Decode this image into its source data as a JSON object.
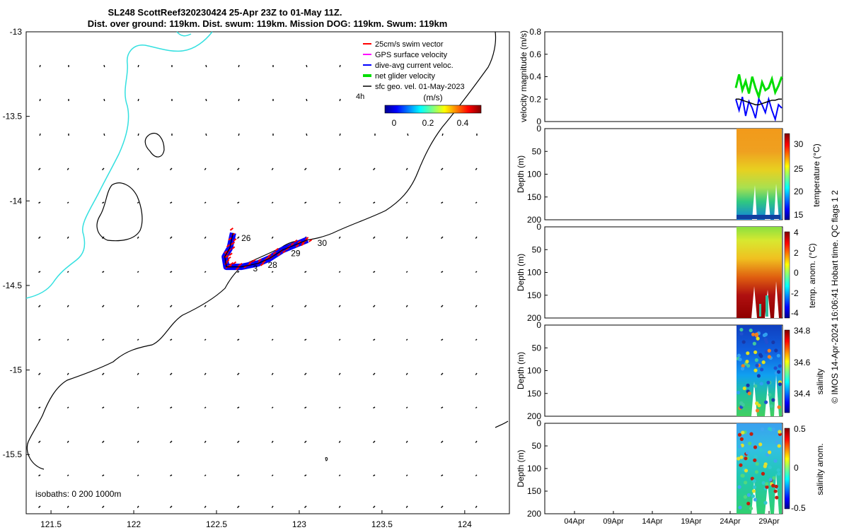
{
  "title": {
    "line1": "SL248 ScottReef320230424 25-Apr 23Z to 01-May 11Z.",
    "line2": "Dist. over ground: 119km. Dist. swum: 119km. Mission DOG: 119km. Swum: 119km"
  },
  "colors": {
    "swim_vector": "#ff0000",
    "gps_surface": "#ff00ff",
    "dive_avg": "#0000ff",
    "net_glider": "#00dd00",
    "sfc_geo": "#000000",
    "coast_cyan": "#33e0e0"
  },
  "chart_data": [
    {
      "type": "map",
      "name": "track map",
      "xlim": [
        121.35,
        124.27
      ],
      "ylim": [
        -15.85,
        -13
      ],
      "xticks": [
        "121.5",
        "122",
        "122.5",
        "123",
        "123.5",
        "124"
      ],
      "xtick_values": [
        121.5,
        122,
        122.5,
        123,
        123.5,
        124
      ],
      "yticks": [
        "-13",
        "-13.5",
        "-14",
        "-14.5",
        "-15",
        "-15.5"
      ],
      "ytick_values": [
        -13,
        -13.5,
        -14,
        -14.5,
        -15,
        -15.5
      ],
      "legend": [
        {
          "label": "25cm/s swim vector",
          "color": "#ff0000"
        },
        {
          "label": "GPS surface velocity",
          "color": "#ff00ff"
        },
        {
          "label": "dive-avg current veloc.",
          "color": "#0000ff"
        },
        {
          "label": "net glider velocity",
          "color": "#00dd00"
        },
        {
          "label": "sfc geo. vel. 01-May-2023",
          "color": "#000000"
        }
      ],
      "legend_extra": "4h",
      "colorbar": {
        "label": "(m/s)",
        "ticks": [
          "0",
          "0.2",
          "0.4"
        ],
        "range": [
          0,
          0.5
        ]
      },
      "day_labels": [
        {
          "text": "26",
          "lon": 122.65,
          "lat": -14.22
        },
        {
          "text": "28",
          "lon": 122.81,
          "lat": -14.38
        },
        {
          "text": "3",
          "lon": 122.72,
          "lat": -14.4
        },
        {
          "text": "29",
          "lon": 122.95,
          "lat": -14.31
        },
        {
          "text": "30",
          "lon": 123.11,
          "lat": -14.25
        }
      ],
      "track": [
        {
          "lon": 122.6,
          "lat": -14.19
        },
        {
          "lon": 122.58,
          "lat": -14.28
        },
        {
          "lon": 122.55,
          "lat": -14.33
        },
        {
          "lon": 122.56,
          "lat": -14.39
        },
        {
          "lon": 122.65,
          "lat": -14.39
        },
        {
          "lon": 122.75,
          "lat": -14.37
        },
        {
          "lon": 122.82,
          "lat": -14.34
        },
        {
          "lon": 122.9,
          "lat": -14.29
        },
        {
          "lon": 123.0,
          "lat": -14.25
        },
        {
          "lon": 123.05,
          "lat": -14.23
        }
      ],
      "isobath_note": "isobaths: 0   200  1000m"
    },
    {
      "type": "line",
      "name": "velocity magnitude",
      "ylabel": "velocity magnitude (m/s)",
      "ylim": [
        0,
        0.8
      ],
      "yticks": [
        "0",
        "0.2",
        "0.4",
        "0.6",
        "0.8"
      ],
      "ytick_values": [
        0,
        0.2,
        0.4,
        0.6,
        0.8
      ],
      "x_start_day": 26,
      "x_end_day": 31.5,
      "series": [
        {
          "name": "net glider velocity",
          "color": "#00dd00",
          "values": [
            0.3,
            0.42,
            0.28,
            0.36,
            0.25,
            0.4,
            0.3,
            0.22,
            0.35,
            0.28,
            0.3,
            0.38,
            0.26,
            0.32,
            0.4
          ]
        },
        {
          "name": "dive-avg current veloc.",
          "color": "#0000ff",
          "values": [
            0.2,
            0.1,
            0.22,
            0.05,
            0.18,
            0.12,
            0.03,
            0.2,
            0.15,
            0.08,
            0.2,
            0.1,
            0.02,
            0.15,
            0.12
          ]
        },
        {
          "name": "sfc geo. vel.",
          "color": "#000000",
          "values": [
            0.2,
            0.2,
            0.19,
            0.18,
            0.17,
            0.16,
            0.15,
            0.15,
            0.16,
            0.17,
            0.18,
            0.19,
            0.19,
            0.2,
            0.2
          ]
        }
      ]
    },
    {
      "type": "heatmap",
      "name": "temperature",
      "ylabel": "Depth (m)",
      "colorbar_label": "temperature (°C)",
      "ylim": [
        200,
        0
      ],
      "yticks": [
        "0",
        "50",
        "100",
        "150",
        "200"
      ],
      "colorbar_ticks": [
        "30",
        "25",
        "20",
        "15"
      ],
      "color_range": [
        14,
        32
      ]
    },
    {
      "type": "heatmap",
      "name": "temp. anom.",
      "ylabel": "Depth (m)",
      "colorbar_label": "temp. anom. (°C)",
      "ylim": [
        200,
        0
      ],
      "yticks": [
        "0",
        "50",
        "100",
        "150",
        "200"
      ],
      "colorbar_ticks": [
        "4",
        "2",
        "0",
        "-2",
        "-4"
      ],
      "color_range": [
        -4,
        4
      ]
    },
    {
      "type": "scatter",
      "name": "salinity",
      "ylabel": "Depth (m)",
      "colorbar_label": "salinity",
      "ylim": [
        200,
        0
      ],
      "yticks": [
        "0",
        "50",
        "100",
        "150",
        "200"
      ],
      "colorbar_ticks": [
        "34.8",
        "34.6",
        "34.4"
      ],
      "color_range": [
        34.25,
        34.82
      ]
    },
    {
      "type": "scatter",
      "name": "salinity anom.",
      "ylabel": "Depth (m)",
      "colorbar_label": "salinity anom.",
      "ylim": [
        200,
        0
      ],
      "yticks": [
        "0",
        "50",
        "100",
        "150",
        "200"
      ],
      "colorbar_ticks": [
        "0.5",
        "0",
        "-0.5"
      ],
      "color_range": [
        -0.55,
        0.55
      ],
      "xticks": [
        "04Apr",
        "09Apr",
        "14Apr",
        "19Apr",
        "24Apr",
        "29Apr"
      ]
    }
  ],
  "side_note": "© IMOS 14-Apr-2024 16:06:41 Hobart time. QC flags 1  2"
}
